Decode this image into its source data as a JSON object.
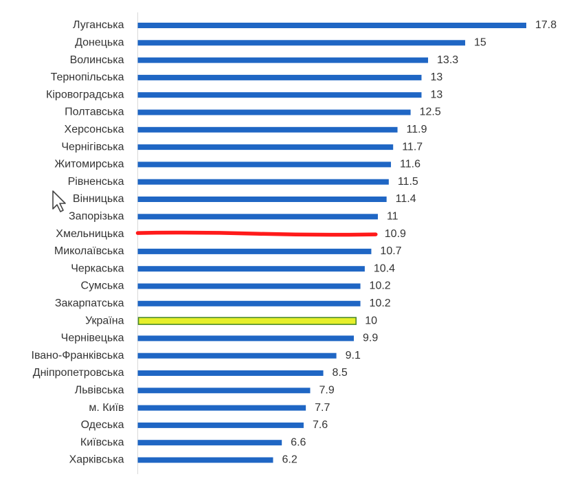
{
  "chart_data": {
    "type": "bar",
    "orientation": "horizontal",
    "categories": [
      "Луганська",
      "Донецька",
      "Волинська",
      "Тернопільська",
      "Кіровоградська",
      "Полтавська",
      "Херсонська",
      "Чернігівська",
      "Житомирська",
      "Рівненська",
      "Вінницька",
      "Запорізька",
      "Хмельницька",
      "Миколаївська",
      "Черкаська",
      "Сумська",
      "Закарпатська",
      "Україна",
      "Чернівецька",
      "Івано-Франківська",
      "Дніпропетровська",
      "Львівська",
      "м. Київ",
      "Одеська",
      "Київська",
      "Харківська"
    ],
    "values": [
      17.8,
      15,
      13.3,
      13,
      13,
      12.5,
      11.9,
      11.7,
      11.6,
      11.5,
      11.4,
      11,
      10.9,
      10.7,
      10.4,
      10.2,
      10.2,
      10,
      9.9,
      9.1,
      8.5,
      7.9,
      7.7,
      7.6,
      6.6,
      6.2
    ],
    "value_labels": [
      "17.8",
      "15",
      "13.3",
      "13",
      "13",
      "12.5",
      "11.9",
      "11.7",
      "11.6",
      "11.5",
      "11.4",
      "11",
      "10.9",
      "10.7",
      "10.4",
      "10.2",
      "10.2",
      "10",
      "9.9",
      "9.1",
      "8.5",
      "7.9",
      "7.7",
      "7.6",
      "6.6",
      "6.2"
    ],
    "xlim": [
      0,
      17.8
    ],
    "title": "",
    "xlabel": "",
    "ylabel": "",
    "grid": false,
    "legend": "none",
    "highlights": {
      "Хмельницька": {
        "color": "#ff1a1a",
        "style": "hand-drawn red line"
      },
      "Україна": {
        "color": "#e6ef2a",
        "outline": "#4a8a2a"
      }
    },
    "bar_color": "#1f66c4",
    "axis_color": "#d9d9d9",
    "label_color": "#333333"
  },
  "overlay": {
    "cursor_icon": "mouse-pointer-icon"
  }
}
